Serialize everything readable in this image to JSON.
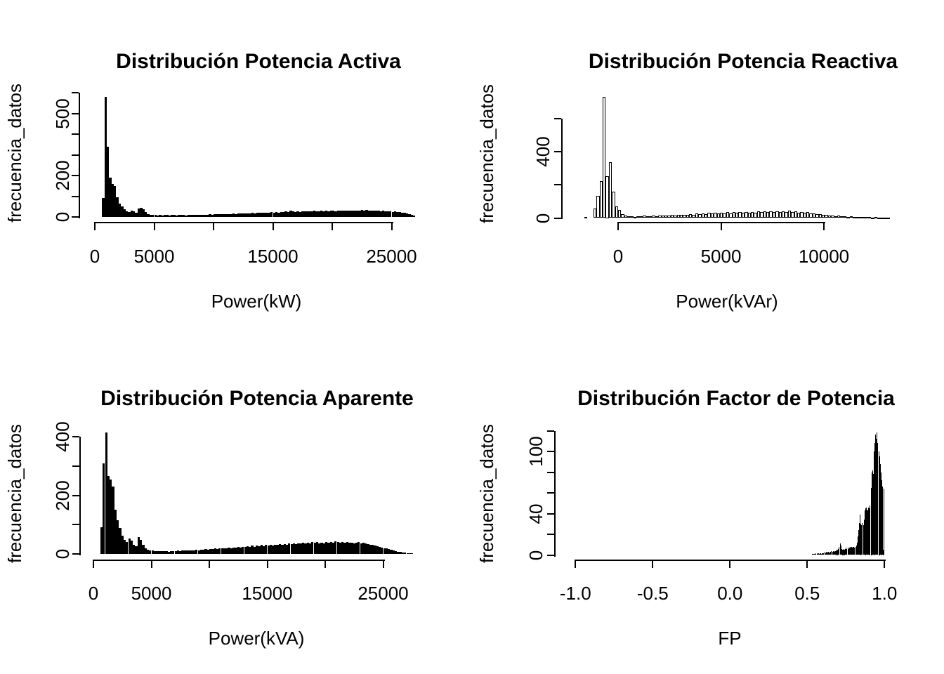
{
  "figure": {
    "background": "#ffffff",
    "bar_fill": "#000000",
    "axis_color": "#000000"
  },
  "chart_data": [
    {
      "id": "potencia-activa",
      "type": "bar",
      "title": "Distribución Potencia Activa",
      "xlabel": "Power(kW)",
      "ylabel": "frecuencia_datos",
      "bar_style": "solid",
      "xlim": [
        0,
        27000
      ],
      "ylim": [
        0,
        600
      ],
      "grid": false,
      "legend": "none",
      "x_ticks": [
        {
          "v": 0,
          "label": "0"
        },
        {
          "v": 5000,
          "label": "5000"
        },
        {
          "v": 10000,
          "label": ""
        },
        {
          "v": 15000,
          "label": "15000"
        },
        {
          "v": 20000,
          "label": ""
        },
        {
          "v": 25000,
          "label": "25000"
        }
      ],
      "y_ticks": [
        {
          "v": 0,
          "label": "0"
        },
        {
          "v": 100,
          "label": ""
        },
        {
          "v": 200,
          "label": "200"
        },
        {
          "v": 300,
          "label": ""
        },
        {
          "v": 400,
          "label": ""
        },
        {
          "v": 500,
          "label": "500"
        },
        {
          "v": 600,
          "label": ""
        }
      ],
      "bin_start": 600,
      "bin_width": 200,
      "counts": [
        90,
        580,
        340,
        190,
        160,
        150,
        95,
        65,
        52,
        38,
        28,
        24,
        30,
        26,
        20,
        42,
        44,
        38,
        25,
        14,
        11,
        10,
        9,
        8,
        9,
        8,
        10,
        9,
        8,
        9,
        10,
        8,
        9,
        10,
        9,
        8,
        10,
        9,
        10,
        11,
        10,
        9,
        10,
        11,
        10,
        12,
        11,
        12,
        13,
        12,
        14,
        13,
        14,
        15,
        14,
        16,
        15,
        16,
        17,
        16,
        18,
        17,
        18,
        19,
        18,
        20,
        19,
        21,
        20,
        22,
        21,
        23,
        22,
        24,
        22,
        25,
        23,
        26,
        24,
        30,
        26,
        25,
        27,
        25,
        28,
        26,
        27,
        28,
        26,
        29,
        27,
        28,
        29,
        27,
        30,
        28,
        29,
        30,
        28,
        31,
        29,
        30,
        31,
        29,
        32,
        30,
        31,
        32,
        30,
        33,
        31,
        34,
        31,
        30,
        32,
        29,
        30,
        28,
        29,
        27,
        28,
        26,
        25,
        26,
        24,
        23,
        21,
        19,
        16,
        13,
        10,
        7
      ]
    },
    {
      "id": "potencia-reactiva",
      "type": "bar",
      "title": "Distribución Potencia Reactiva",
      "xlabel": "Power(kVAr)",
      "ylabel": "frecuencia_datos",
      "bar_style": "outline",
      "xlim": [
        -2000,
        13200
      ],
      "ylim": [
        0,
        600
      ],
      "grid": false,
      "legend": "none",
      "x_ticks": [
        {
          "v": 0,
          "label": "0"
        },
        {
          "v": 5000,
          "label": "5000"
        },
        {
          "v": 10000,
          "label": "10000"
        }
      ],
      "y_ticks": [
        {
          "v": 0,
          "label": "0"
        },
        {
          "v": 200,
          "label": ""
        },
        {
          "v": 400,
          "label": "400"
        },
        {
          "v": 600,
          "label": ""
        }
      ],
      "bin_start": -1650,
      "bin_width": 150,
      "counts": [
        8,
        0,
        0,
        55,
        135,
        220,
        730,
        250,
        335,
        160,
        70,
        50,
        25,
        14,
        10,
        10,
        8,
        12,
        9,
        13,
        10,
        12,
        14,
        11,
        15,
        13,
        16,
        14,
        18,
        15,
        19,
        17,
        21,
        18,
        23,
        20,
        26,
        22,
        28,
        24,
        30,
        26,
        32,
        27,
        33,
        28,
        34,
        29,
        35,
        30,
        36,
        31,
        36,
        32,
        38,
        33,
        39,
        34,
        40,
        34,
        41,
        35,
        40,
        34,
        42,
        36,
        43,
        35,
        40,
        32,
        38,
        30,
        34,
        26,
        28,
        22,
        24,
        18,
        20,
        15,
        16,
        12,
        13,
        10,
        11,
        8,
        9,
        7,
        8,
        6,
        7,
        5,
        6,
        4,
        5,
        3,
        4,
        3,
        2
      ]
    },
    {
      "id": "potencia-aparente",
      "type": "bar",
      "title": "Distribución Potencia Aparente",
      "xlabel": "Power(kVA)",
      "ylabel": "frecuencia_datos",
      "bar_style": "solid",
      "xlim": [
        0,
        27800
      ],
      "ylim": [
        0,
        400
      ],
      "grid": false,
      "legend": "none",
      "x_ticks": [
        {
          "v": 0,
          "label": "0"
        },
        {
          "v": 5000,
          "label": "5000"
        },
        {
          "v": 10000,
          "label": ""
        },
        {
          "v": 15000,
          "label": "15000"
        },
        {
          "v": 20000,
          "label": ""
        },
        {
          "v": 25000,
          "label": "25000"
        }
      ],
      "y_ticks": [
        {
          "v": 0,
          "label": "0"
        },
        {
          "v": 100,
          "label": ""
        },
        {
          "v": 200,
          "label": "200"
        },
        {
          "v": 300,
          "label": ""
        },
        {
          "v": 400,
          "label": "400"
        }
      ],
      "bin_start": 600,
      "bin_width": 200,
      "counts": [
        90,
        310,
        414,
        265,
        255,
        230,
        150,
        115,
        88,
        62,
        48,
        40,
        52,
        46,
        32,
        26,
        58,
        48,
        30,
        18,
        14,
        12,
        11,
        10,
        9,
        10,
        9,
        10,
        9,
        8,
        10,
        9,
        10,
        11,
        10,
        11,
        12,
        11,
        12,
        13,
        12,
        14,
        13,
        15,
        14,
        16,
        15,
        17,
        16,
        18,
        17,
        19,
        18,
        20,
        19,
        21,
        20,
        22,
        21,
        23,
        22,
        25,
        23,
        26,
        24,
        28,
        25,
        29,
        26,
        30,
        27,
        31,
        28,
        30,
        29,
        32,
        30,
        33,
        31,
        34,
        32,
        35,
        33,
        36,
        34,
        37,
        35,
        38,
        36,
        39,
        37,
        40,
        38,
        40,
        37,
        39,
        36,
        40,
        38,
        41,
        39,
        42,
        40,
        38,
        41,
        39,
        40,
        38,
        39,
        37,
        38,
        40,
        37,
        39,
        36,
        34,
        32,
        30,
        28,
        26,
        24,
        22,
        20,
        18,
        16,
        14,
        12,
        10,
        8,
        6,
        5,
        4,
        3,
        2,
        2
      ]
    },
    {
      "id": "factor-de-potencia",
      "type": "bar",
      "title": "Distribución Factor de Potencia",
      "xlabel": "FP",
      "ylabel": "frecuencia_datos",
      "bar_style": "solid",
      "xlim": [
        -1.1,
        1.05
      ],
      "ylim": [
        0,
        120
      ],
      "grid": false,
      "legend": "none",
      "x_ticks": [
        {
          "v": -1.0,
          "label": "-1.0"
        },
        {
          "v": -0.5,
          "label": "-0.5"
        },
        {
          "v": 0.0,
          "label": "0.0"
        },
        {
          "v": 0.5,
          "label": "0.5"
        },
        {
          "v": 1.0,
          "label": "1.0"
        }
      ],
      "y_ticks": [
        {
          "v": 0,
          "label": "0"
        },
        {
          "v": 20,
          "label": ""
        },
        {
          "v": 40,
          "label": "40"
        },
        {
          "v": 60,
          "label": ""
        },
        {
          "v": 80,
          "label": ""
        },
        {
          "v": 100,
          "label": "100"
        },
        {
          "v": 120,
          "label": ""
        }
      ],
      "bin_start": 0.53,
      "bin_width": 0.005,
      "counts": [
        1,
        1,
        1,
        1,
        2,
        1,
        2,
        1,
        2,
        1,
        2,
        2,
        1,
        2,
        2,
        2,
        3,
        2,
        3,
        2,
        3,
        3,
        2,
        3,
        3,
        4,
        3,
        4,
        3,
        4,
        4,
        5,
        4,
        5,
        6,
        8,
        11,
        9,
        6,
        5,
        5,
        6,
        5,
        6,
        7,
        6,
        7,
        6,
        7,
        8,
        7,
        8,
        7,
        8,
        8,
        7,
        8,
        9,
        12,
        18,
        24,
        31,
        39,
        30,
        29,
        31,
        29,
        34,
        43,
        45,
        46,
        44,
        43,
        46,
        45,
        48,
        65,
        80,
        82,
        78,
        100,
        108,
        116,
        112,
        118,
        108,
        100,
        95,
        88,
        80,
        72,
        66,
        5,
        64
      ]
    }
  ]
}
